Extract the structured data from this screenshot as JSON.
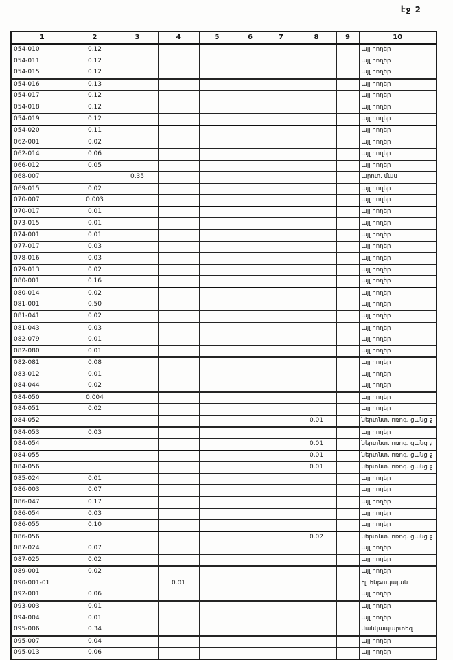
{
  "page_label": "էջ 2",
  "table": {
    "headers": [
      "1",
      "2",
      "3",
      "4",
      "5",
      "6",
      "7",
      "8",
      "9",
      "10"
    ],
    "rows": [
      [
        "054-010",
        "0.12",
        "",
        "",
        "",
        "",
        "",
        "",
        "",
        "այլ հողեր"
      ],
      [
        "054-011",
        "0.12",
        "",
        "",
        "",
        "",
        "",
        "",
        "",
        "այլ հողեր"
      ],
      [
        "054-015",
        "0.12",
        "",
        "",
        "",
        "",
        "",
        "",
        "",
        "այլ հողեր"
      ],
      [
        "054-016",
        "0.13",
        "",
        "",
        "",
        "",
        "",
        "",
        "",
        "այլ հողեր"
      ],
      [
        "054-017",
        "0.12",
        "",
        "",
        "",
        "",
        "",
        "",
        "",
        "այլ հողեր"
      ],
      [
        "054-018",
        "0.12",
        "",
        "",
        "",
        "",
        "",
        "",
        "",
        "այլ հողեր"
      ],
      [
        "054-019",
        "0.12",
        "",
        "",
        "",
        "",
        "",
        "",
        "",
        "այլ հողեր"
      ],
      [
        "054-020",
        "0.11",
        "",
        "",
        "",
        "",
        "",
        "",
        "",
        "այլ հողեր"
      ],
      [
        "062-001",
        "0.02",
        "",
        "",
        "",
        "",
        "",
        "",
        "",
        "այլ հողեր"
      ],
      [
        "062-014",
        "0.06",
        "",
        "",
        "",
        "",
        "",
        "",
        "",
        "այլ հողեր"
      ],
      [
        "066-012",
        "0.05",
        "",
        "",
        "",
        "",
        "",
        "",
        "",
        "այլ հողեր"
      ],
      [
        "068-007",
        "",
        "0.35",
        "",
        "",
        "",
        "",
        "",
        "",
        "արոտ. մաս"
      ],
      [
        "069-015",
        "0.02",
        "",
        "",
        "",
        "",
        "",
        "",
        "",
        "այլ հողեր"
      ],
      [
        "070-007",
        "0.003",
        "",
        "",
        "",
        "",
        "",
        "",
        "",
        "այլ հողեր"
      ],
      [
        "070-017",
        "0.01",
        "",
        "",
        "",
        "",
        "",
        "",
        "",
        "այլ հողեր"
      ],
      [
        "073-015",
        "0.01",
        "",
        "",
        "",
        "",
        "",
        "",
        "",
        "այլ հողեր"
      ],
      [
        "074-001",
        "0.01",
        "",
        "",
        "",
        "",
        "",
        "",
        "",
        "այլ հողեր"
      ],
      [
        "077-017",
        "0.03",
        "",
        "",
        "",
        "",
        "",
        "",
        "",
        "այլ հողեր"
      ],
      [
        "078-016",
        "0.03",
        "",
        "",
        "",
        "",
        "",
        "",
        "",
        "այլ հողեր"
      ],
      [
        "079-013",
        "0.02",
        "",
        "",
        "",
        "",
        "",
        "",
        "",
        "այլ հողեր"
      ],
      [
        "080-001",
        "0.16",
        "",
        "",
        "",
        "",
        "",
        "",
        "",
        "այլ հողեր"
      ],
      [
        "080-014",
        "0.02",
        "",
        "",
        "",
        "",
        "",
        "",
        "",
        "այլ հողեր"
      ],
      [
        "081-001",
        "0.50",
        "",
        "",
        "",
        "",
        "",
        "",
        "",
        "այլ հողեր"
      ],
      [
        "081-041",
        "0.02",
        "",
        "",
        "",
        "",
        "",
        "",
        "",
        "այլ հողեր"
      ],
      [
        "081-043",
        "0.03",
        "",
        "",
        "",
        "",
        "",
        "",
        "",
        "այլ հողեր"
      ],
      [
        "082-079",
        "0.01",
        "",
        "",
        "",
        "",
        "",
        "",
        "",
        "այլ հողեր"
      ],
      [
        "082-080",
        "0.01",
        "",
        "",
        "",
        "",
        "",
        "",
        "",
        "այլ հողեր"
      ],
      [
        "082-081",
        "0.08",
        "",
        "",
        "",
        "",
        "",
        "",
        "",
        "այլ հողեր"
      ],
      [
        "083-012",
        "0.01",
        "",
        "",
        "",
        "",
        "",
        "",
        "",
        "այլ հողեր"
      ],
      [
        "084-044",
        "0.02",
        "",
        "",
        "",
        "",
        "",
        "",
        "",
        "այլ հողեր"
      ],
      [
        "084-050",
        "0.004",
        "",
        "",
        "",
        "",
        "",
        "",
        "",
        "այլ հողեր"
      ],
      [
        "084-051",
        "0.02",
        "",
        "",
        "",
        "",
        "",
        "",
        "",
        "այլ հողեր"
      ],
      [
        "084-052",
        "",
        "",
        "",
        "",
        "",
        "",
        "0.01",
        "",
        "ներտնտ. ոռոգ. ցանց ջ"
      ],
      [
        "084-053",
        "0.03",
        "",
        "",
        "",
        "",
        "",
        "",
        "",
        "այլ հողեր"
      ],
      [
        "084-054",
        "",
        "",
        "",
        "",
        "",
        "",
        "0.01",
        "",
        "ներտնտ. ոռոգ. ցանց ջ"
      ],
      [
        "084-055",
        "",
        "",
        "",
        "",
        "",
        "",
        "0.01",
        "",
        "ներտնտ. ոռոգ. ցանց ջ"
      ],
      [
        "084-056",
        "",
        "",
        "",
        "",
        "",
        "",
        "0.01",
        "",
        "ներտնտ. ոռոգ. ցանց ջ"
      ],
      [
        "085-024",
        "0.01",
        "",
        "",
        "",
        "",
        "",
        "",
        "",
        "այլ հողեր"
      ],
      [
        "086-003",
        "0.07",
        "",
        "",
        "",
        "",
        "",
        "",
        "",
        "այլ հողեր"
      ],
      [
        "086-047",
        "0.17",
        "",
        "",
        "",
        "",
        "",
        "",
        "",
        "այլ հողեր"
      ],
      [
        "086-054",
        "0.03",
        "",
        "",
        "",
        "",
        "",
        "",
        "",
        "այլ հողեր"
      ],
      [
        "086-055",
        "0.10",
        "",
        "",
        "",
        "",
        "",
        "",
        "",
        "այլ հողեր"
      ],
      [
        "086-056",
        "",
        "",
        "",
        "",
        "",
        "",
        "0.02",
        "",
        "ներտնտ. ոռոգ. ցանց ջ"
      ],
      [
        "087-024",
        "0.07",
        "",
        "",
        "",
        "",
        "",
        "",
        "",
        "այլ հողեր"
      ],
      [
        "087-025",
        "0.02",
        "",
        "",
        "",
        "",
        "",
        "",
        "",
        "այլ հողեր"
      ],
      [
        "089-001",
        "0.02",
        "",
        "",
        "",
        "",
        "",
        "",
        "",
        "այլ հողեր"
      ],
      [
        "090-001-01",
        "",
        "",
        "0.01",
        "",
        "",
        "",
        "",
        "",
        "էլ. ենթակայան"
      ],
      [
        "092-001",
        "0.06",
        "",
        "",
        "",
        "",
        "",
        "",
        "",
        "այլ հողեր"
      ],
      [
        "093-003",
        "0.01",
        "",
        "",
        "",
        "",
        "",
        "",
        "",
        "այլ հողեր"
      ],
      [
        "094-004",
        "0.01",
        "",
        "",
        "",
        "",
        "",
        "",
        "",
        "այլ հողեր"
      ],
      [
        "095-006",
        "0.34",
        "",
        "",
        "",
        "",
        "",
        "",
        "",
        "մանկապարտեզ"
      ],
      [
        "095-007",
        "0.04",
        "",
        "",
        "",
        "",
        "",
        "",
        "",
        "այլ հողեր"
      ],
      [
        "095-013",
        "0.06",
        "",
        "",
        "",
        "",
        "",
        "",
        "",
        "այլ հողեր"
      ]
    ]
  }
}
